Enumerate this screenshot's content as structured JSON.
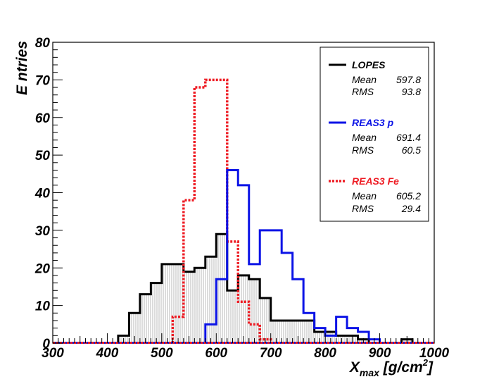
{
  "chart_data": {
    "type": "histogram",
    "x_axis": {
      "range": [
        300,
        1000
      ],
      "ticks": [
        300,
        400,
        500,
        600,
        700,
        800,
        900,
        1000
      ],
      "tick_labels": [
        "300",
        "400",
        "500",
        "600",
        "700",
        "800",
        "900",
        "1000"
      ],
      "label_main": "X",
      "label_sub": "max",
      "label_unit_prefix": " [g/cm",
      "label_unit_sup": "2",
      "label_unit_suffix": "]"
    },
    "y_axis": {
      "range": [
        0,
        80
      ],
      "ticks": [
        0,
        10,
        20,
        30,
        40,
        50,
        60,
        70,
        80
      ],
      "tick_labels": [
        "0",
        "10",
        "20",
        "30",
        "40",
        "50",
        "60",
        "70",
        "80"
      ],
      "label": "E ntries"
    },
    "bin_width": 20,
    "series": [
      {
        "name": "LOPES",
        "color": "#000000",
        "style": "solid",
        "fill": "vertical-hatch",
        "mean": "597.8",
        "rms": "93.8",
        "bins": [
          {
            "x": 400,
            "v": 0
          },
          {
            "x": 420,
            "v": 2
          },
          {
            "x": 440,
            "v": 8
          },
          {
            "x": 460,
            "v": 13
          },
          {
            "x": 480,
            "v": 16
          },
          {
            "x": 500,
            "v": 21
          },
          {
            "x": 520,
            "v": 21
          },
          {
            "x": 540,
            "v": 19
          },
          {
            "x": 560,
            "v": 20
          },
          {
            "x": 580,
            "v": 23
          },
          {
            "x": 600,
            "v": 29
          },
          {
            "x": 620,
            "v": 14
          },
          {
            "x": 640,
            "v": 18
          },
          {
            "x": 660,
            "v": 17
          },
          {
            "x": 680,
            "v": 12
          },
          {
            "x": 700,
            "v": 6
          },
          {
            "x": 720,
            "v": 6
          },
          {
            "x": 740,
            "v": 6
          },
          {
            "x": 760,
            "v": 6
          },
          {
            "x": 780,
            "v": 3
          },
          {
            "x": 800,
            "v": 3
          },
          {
            "x": 820,
            "v": 2
          },
          {
            "x": 840,
            "v": 2
          },
          {
            "x": 860,
            "v": 1
          },
          {
            "x": 880,
            "v": 0
          },
          {
            "x": 900,
            "v": 0
          },
          {
            "x": 920,
            "v": 0
          },
          {
            "x": 940,
            "v": 1
          },
          {
            "x": 960,
            "v": 0
          }
        ]
      },
      {
        "name": "REAS3 p",
        "color": "#0b13e6",
        "style": "solid",
        "fill": "none",
        "mean": "691.4",
        "rms": "60.5",
        "bins": [
          {
            "x": 580,
            "v": 5
          },
          {
            "x": 600,
            "v": 17
          },
          {
            "x": 620,
            "v": 46
          },
          {
            "x": 640,
            "v": 42
          },
          {
            "x": 660,
            "v": 21
          },
          {
            "x": 680,
            "v": 30
          },
          {
            "x": 700,
            "v": 30
          },
          {
            "x": 720,
            "v": 24
          },
          {
            "x": 740,
            "v": 17
          },
          {
            "x": 760,
            "v": 8
          },
          {
            "x": 780,
            "v": 4
          },
          {
            "x": 800,
            "v": 2
          },
          {
            "x": 820,
            "v": 7
          },
          {
            "x": 840,
            "v": 4
          },
          {
            "x": 860,
            "v": 3
          },
          {
            "x": 880,
            "v": 1
          },
          {
            "x": 900,
            "v": 0
          }
        ]
      },
      {
        "name": "REAS3 Fe",
        "color": "#ee1c24",
        "style": "dotted",
        "fill": "none",
        "mean": "605.2",
        "rms": "29.4",
        "bins": [
          {
            "x": 520,
            "v": 7
          },
          {
            "x": 540,
            "v": 38
          },
          {
            "x": 560,
            "v": 68
          },
          {
            "x": 580,
            "v": 70
          },
          {
            "x": 600,
            "v": 70
          },
          {
            "x": 620,
            "v": 27
          },
          {
            "x": 640,
            "v": 11
          },
          {
            "x": 660,
            "v": 5
          },
          {
            "x": 680,
            "v": 1
          },
          {
            "x": 700,
            "v": 0
          }
        ]
      }
    ],
    "legend": {
      "position": "top-right",
      "mean_label": "Mean",
      "rms_label": "RMS"
    }
  }
}
